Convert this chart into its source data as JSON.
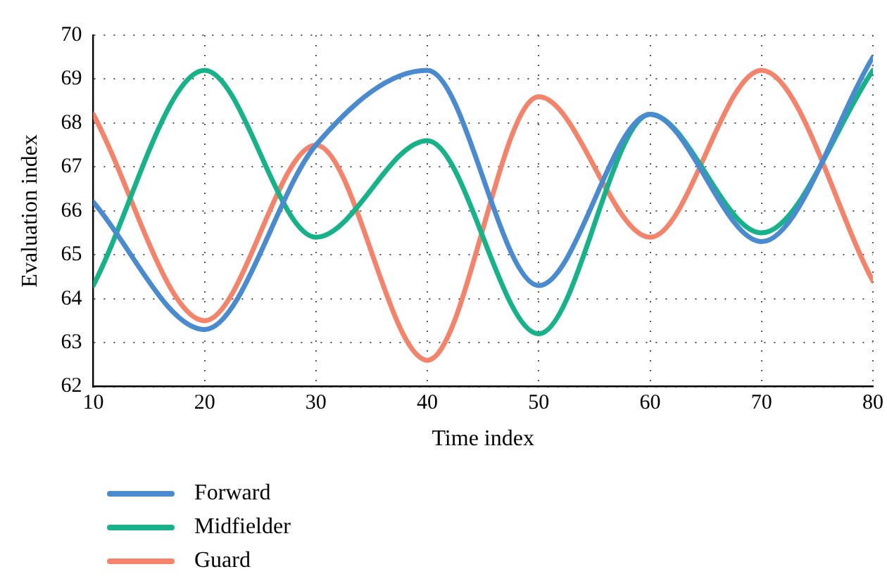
{
  "chart_data": {
    "type": "line",
    "xlabel": "Time index",
    "ylabel": "Evaluation index",
    "x": [
      10,
      20,
      30,
      40,
      50,
      60,
      70,
      80
    ],
    "series": [
      {
        "name": "Forward",
        "color": "#4a8bd0",
        "values": [
          66.2,
          63.3,
          67.5,
          69.2,
          64.3,
          68.2,
          65.3,
          69.5
        ]
      },
      {
        "name": "Midfielder",
        "color": "#17b18a",
        "values": [
          64.3,
          69.2,
          65.4,
          67.6,
          63.2,
          68.2,
          65.5,
          69.2
        ]
      },
      {
        "name": "Guard",
        "color": "#f3836a",
        "values": [
          68.2,
          63.5,
          67.5,
          62.6,
          68.6,
          65.4,
          69.2,
          64.4
        ]
      }
    ],
    "xlim": [
      10,
      80
    ],
    "xticks": [
      10,
      20,
      30,
      40,
      50,
      60,
      70,
      80
    ],
    "ylim": [
      62,
      70
    ],
    "yticks": [
      62,
      63,
      64,
      65,
      66,
      67,
      68,
      69,
      70
    ],
    "grid": true,
    "legend": "bottom left",
    "marker": "none",
    "line_style": "solid"
  }
}
